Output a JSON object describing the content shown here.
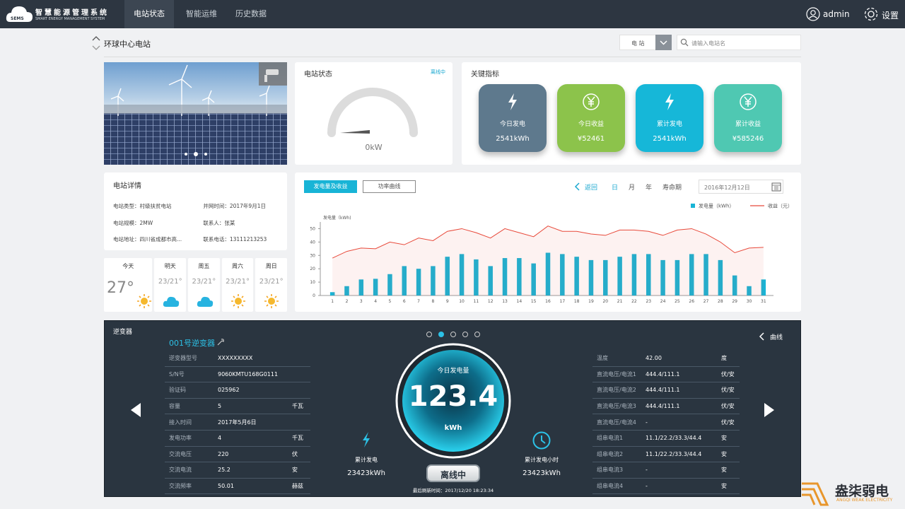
{
  "header": {
    "logo": "SEMS",
    "title": "智慧能源管理系统",
    "subtitle": "SMART ENERGY MANAGEMENT SYSTEM",
    "nav": [
      "电站状态",
      "智能运维",
      "历史数据"
    ],
    "user": "admin",
    "settings": "设置"
  },
  "station": {
    "name": "环球中心电站",
    "filter": "电 站",
    "search_placeholder": "请输入电站名"
  },
  "status": {
    "title": "电站状态",
    "state": "离线中",
    "power": "0kW"
  },
  "kpi": {
    "title": "关键指标",
    "items": [
      {
        "label": "今日发电",
        "value": "2541kWh",
        "color": "#5e798d",
        "icon": "bolt"
      },
      {
        "label": "今日收益",
        "value": "¥52461",
        "color": "#8cc34b",
        "icon": "yen"
      },
      {
        "label": "累计发电",
        "value": "2541kWh",
        "color": "#16b7d8",
        "icon": "bolt"
      },
      {
        "label": "累计收益",
        "value": "¥585246",
        "color": "#4fc8b2",
        "icon": "yen"
      }
    ]
  },
  "details": {
    "title": "电站详情",
    "rows": [
      [
        "电站类型：村级扶贫电站",
        "并网时间：2017年9月1日"
      ],
      [
        "电站规模：2MW",
        "联系人：张某"
      ],
      [
        "电站地址：四川省成都市高...",
        "联系电话：13111213253"
      ]
    ]
  },
  "weather": [
    {
      "day": "今天",
      "temp": "27°",
      "icon": "sun"
    },
    {
      "day": "明天",
      "temp": "23/21°",
      "icon": "cloud"
    },
    {
      "day": "周五",
      "temp": "23/21°",
      "icon": "cloud"
    },
    {
      "day": "周六",
      "temp": "23/21°",
      "icon": "sun"
    },
    {
      "day": "周日",
      "temp": "23/21°",
      "icon": "sun"
    }
  ],
  "chart_controls": {
    "tabs": [
      "发电量及收益",
      "功率曲线"
    ],
    "back": "返回",
    "periods": [
      "日",
      "月",
      "年",
      "寿命期"
    ],
    "date": "2016年12月12日"
  },
  "chart_data": {
    "type": "bar",
    "y_label": "发电量（kWh)",
    "categories": [
      "1",
      "2",
      "3",
      "4",
      "5",
      "6",
      "7",
      "8",
      "9",
      "10",
      "11",
      "12",
      "13",
      "14",
      "15",
      "16",
      "17",
      "18",
      "19",
      "20",
      "21",
      "22",
      "23",
      "24",
      "25",
      "26",
      "27",
      "28",
      "29",
      "30",
      "31"
    ],
    "series": [
      {
        "name": "发电量（kWh）",
        "type": "bar",
        "color": "#18b4d6",
        "values": [
          2.5,
          7,
          12,
          12.5,
          16,
          22,
          20,
          22,
          29,
          31,
          27,
          22,
          28,
          28,
          24,
          32,
          31,
          29,
          26.5,
          26.5,
          29,
          31,
          31,
          26.5,
          26.5,
          31,
          31,
          26.5,
          15,
          7,
          12
        ]
      },
      {
        "name": "收益（元）",
        "type": "line",
        "color": "#e8493a",
        "values": [
          28,
          33,
          35.5,
          35,
          40,
          38,
          43,
          41,
          48,
          50,
          47,
          43,
          50,
          47,
          44,
          52,
          48,
          48,
          46,
          45,
          49,
          49,
          48,
          45,
          49,
          50,
          46,
          40,
          32,
          35.5,
          36
        ]
      }
    ],
    "ylim": [
      0,
      55
    ],
    "yticks": [
      0,
      10,
      20,
      30,
      40,
      50
    ],
    "legend": "top-right"
  },
  "inverter": {
    "title": "逆变器",
    "name": "001号逆变器",
    "curve": "曲线",
    "left_rows": [
      [
        "逆变器型号",
        "XXXXXXXXX"
      ],
      [
        "S/N号",
        "9060KMTU168G0111"
      ],
      [
        "验证码",
        "025962"
      ],
      [
        "容量",
        "5",
        "千瓦"
      ],
      [
        "接入时间",
        "2017年5月6日"
      ],
      [
        "发电功率",
        "4",
        "千瓦"
      ],
      [
        "交流电压",
        "220",
        "伏"
      ],
      [
        "交流电流",
        "25.2",
        "安"
      ],
      [
        "交流频率",
        "50.01",
        "赫兹"
      ]
    ],
    "right_rows": [
      [
        "温度",
        "42.00",
        "度"
      ],
      [
        "直流电压/电流1",
        "444.4/111.1",
        "伏/安"
      ],
      [
        "直流电压/电流2",
        "444.4/111.1",
        "伏/安"
      ],
      [
        "直流电压/电流3",
        "444.4/111.1",
        "伏/安"
      ],
      [
        "直流电压/电流4",
        "-",
        "伏/安"
      ],
      [
        "组串电流1",
        "11.1/22.2/33.3/44.4",
        "安"
      ],
      [
        "组串电流2",
        "11.1/22.2/33.3/44.4",
        "安"
      ],
      [
        "组串电流3",
        "-",
        "安"
      ],
      [
        "组串电流4",
        "-",
        "安"
      ]
    ],
    "gauge_label": "今日发电量",
    "gauge_value": "123.4",
    "gauge_unit": "kWh",
    "total_label": "累计发电",
    "total_value": "23423kWh",
    "hours_label": "累计发电小时",
    "hours_value": "23423kWh",
    "state": "离线中",
    "refresh": "最后刷新时间：2017/12/20  18:23:34"
  },
  "watermark": {
    "title": "盎柒弱电",
    "subtitle": "ANGQI WEAK ELECTRICITY"
  }
}
